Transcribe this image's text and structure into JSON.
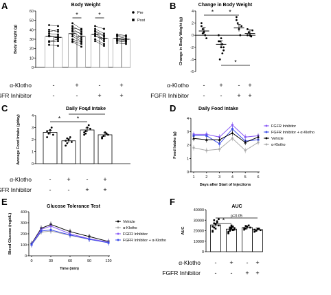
{
  "chart_data": [
    {
      "panel": "A",
      "type": "bar",
      "title": "Body Weight",
      "ylabel": "Body Weight (g)",
      "ylim": [
        0,
        60
      ],
      "yticks": [
        0,
        10,
        20,
        30,
        40,
        50,
        60
      ],
      "legend": [
        {
          "name": "Pre",
          "marker": "circle"
        },
        {
          "name": "Post",
          "marker": "square"
        }
      ],
      "legend_position": "top-right",
      "groups": [
        {
          "pre": 33,
          "post": 32,
          "pre_points": [
            24,
            28,
            36,
            38,
            33,
            40,
            45,
            27,
            34
          ],
          "post_points": [
            23,
            30,
            35,
            40,
            33,
            38,
            44,
            28,
            31
          ]
        },
        {
          "pre": 36,
          "post": 33,
          "pre_points": [
            27,
            30,
            38,
            41,
            44,
            47,
            35,
            33,
            39,
            28,
            42
          ],
          "post_points": [
            22,
            27,
            32,
            35,
            38,
            41,
            30,
            28,
            36,
            25,
            40
          ]
        },
        {
          "pre": 35,
          "post": 31,
          "pre_points": [
            28,
            34,
            38,
            36,
            41,
            33,
            30,
            39,
            44
          ],
          "post_points": [
            23,
            28,
            33,
            30,
            36,
            31,
            25,
            34,
            41
          ]
        },
        {
          "pre": 31,
          "post": 30,
          "pre_points": [
            26,
            29,
            33,
            31,
            35,
            28,
            30,
            34
          ],
          "post_points": [
            25,
            28,
            31,
            30,
            34,
            27,
            29,
            33
          ]
        }
      ],
      "significance": [
        {
          "group": 1,
          "label": "*"
        },
        {
          "group": 2,
          "label": "*"
        }
      ],
      "conditions": {
        "a_klotho": [
          "-",
          "+",
          "-",
          "+"
        ],
        "fgfr_inhibitor": [
          "-",
          "-",
          "+",
          "+"
        ]
      },
      "row_labels": {
        "a_klotho": "α-Klotho",
        "fgfr_inhibitor": "FGFR Inhibitor"
      }
    },
    {
      "panel": "B",
      "type": "bar",
      "title": "Change in Body Weight",
      "ylabel": "Change in Body Weight (g)",
      "ylim": [
        -6,
        4
      ],
      "yticks": [
        -6,
        -4,
        -2,
        0,
        2,
        4
      ],
      "values": [
        0.7,
        -1.5,
        1.2,
        0.3
      ],
      "points": [
        [
          2,
          1,
          0.5,
          0,
          -0.5,
          1.5,
          0.3
        ],
        [
          0,
          -1,
          -2,
          -3,
          -2.5,
          -1,
          -4,
          -0.5,
          -1.5,
          -2
        ],
        [
          3,
          2,
          1,
          0,
          1.5,
          2.5
        ],
        [
          1,
          0.5,
          0,
          -0.2,
          0.8,
          0
        ]
      ],
      "significance": [
        {
          "from": 0,
          "to": 1,
          "label": "*"
        },
        {
          "from": 1,
          "to": 2,
          "label": "*"
        },
        {
          "from": 1,
          "to": 3,
          "label": "*"
        }
      ],
      "conditions": {
        "a_klotho": [
          "-",
          "+",
          "-",
          "+"
        ],
        "fgfr_inhibitor": [
          "-",
          "-",
          "+",
          "+"
        ]
      },
      "row_labels": {
        "a_klotho": "α-Klotho",
        "fgfr_inhibitor": "FGFR Inhibitor"
      }
    },
    {
      "panel": "C",
      "type": "bar",
      "title": "Daily Food Intake",
      "ylabel": "Average Food Intake (g/day)",
      "ylim": [
        0,
        4
      ],
      "yticks": [
        0,
        1,
        2,
        3,
        4
      ],
      "values": [
        2.6,
        1.9,
        2.8,
        2.4
      ],
      "points": [
        [
          2.2,
          2.5,
          2.8,
          3.0,
          2.4,
          2.7
        ],
        [
          1.5,
          1.7,
          2.0,
          2.2,
          1.8,
          1.9,
          2.1
        ],
        [
          2.4,
          2.7,
          3.0,
          3.2,
          2.9,
          2.6,
          2.5
        ],
        [
          2.1,
          2.3,
          2.6,
          2.5,
          2.4,
          2.2
        ]
      ],
      "significance": [
        {
          "from": 0,
          "to": 1,
          "label": "*"
        },
        {
          "from": 1,
          "to": 2,
          "label": "*"
        },
        {
          "from": 1,
          "to": 3,
          "label": "*"
        }
      ],
      "conditions": {
        "a_klotho": [
          "-",
          "+",
          "-",
          "+"
        ],
        "fgfr_inhibitor": [
          "-",
          "-",
          "+",
          "+"
        ]
      },
      "row_labels": {
        "a_klotho": "α-Klotho",
        "fgfr_inhibitor": "FGFR Inhibitor"
      }
    },
    {
      "panel": "D",
      "type": "line",
      "title": "Daily Food Intake",
      "xlabel": "Days after Start of Injections",
      "ylabel": "Food Intake (g)",
      "x": [
        1,
        2,
        3,
        4,
        5,
        6
      ],
      "xlim": [
        1,
        6
      ],
      "ylim": [
        0,
        4
      ],
      "yticks": [
        0,
        1,
        2,
        3,
        4
      ],
      "legend_position": "right",
      "series": [
        {
          "name": "FGFR Inhibitor",
          "color": "#8b5cf6",
          "values": [
            2.8,
            2.8,
            2.6,
            3.5,
            2.6,
            2.7
          ]
        },
        {
          "name": "FGFR Inhibitor + α-Klotho",
          "color": "#3b4ce8",
          "values": [
            2.7,
            2.7,
            2.1,
            3.2,
            2.3,
            2.4
          ]
        },
        {
          "name": "Vehicle",
          "color": "#000000",
          "values": [
            2.5,
            2.4,
            2.4,
            2.9,
            2.2,
            2.6
          ]
        },
        {
          "name": "α-Klotho",
          "color": "#aaaaaa",
          "values": [
            1.8,
            1.6,
            1.7,
            2.5,
            1.6,
            2.2
          ]
        }
      ]
    },
    {
      "panel": "E",
      "type": "line",
      "title": "Glucose Tolerance Test",
      "xlabel": "Time (min)",
      "ylabel": "Blood Glucose (mg/dL)",
      "x": [
        0,
        15,
        30,
        60,
        90,
        120
      ],
      "xticks": [
        0,
        30,
        60,
        90,
        120
      ],
      "xlim": [
        0,
        120
      ],
      "ylim": [
        0,
        400
      ],
      "yticks": [
        0,
        100,
        200,
        300,
        400
      ],
      "legend_position": "right",
      "series": [
        {
          "name": "Vehicle",
          "color": "#000000",
          "values": [
            110,
            250,
            285,
            220,
            175,
            130
          ]
        },
        {
          "name": "α-Klotho",
          "color": "#aaaaaa",
          "values": [
            100,
            215,
            225,
            185,
            150,
            120
          ]
        },
        {
          "name": "FGFR Inhibitor",
          "color": "#8b5cf6",
          "values": [
            105,
            240,
            270,
            200,
            155,
            125
          ]
        },
        {
          "name": "FGFR Inhibitor + α-Klotho",
          "color": "#3b4ce8",
          "values": [
            102,
            225,
            235,
            190,
            150,
            118
          ]
        }
      ]
    },
    {
      "panel": "F",
      "type": "bar",
      "title": "AUC",
      "ylabel": "AUC",
      "ylim": [
        0,
        40000
      ],
      "yticks": [
        0,
        10000,
        20000,
        30000,
        40000
      ],
      "values": [
        25500,
        21500,
        23000,
        21000
      ],
      "points": [
        [
          20000,
          23000,
          26000,
          29000,
          31000,
          24000,
          27000,
          22000,
          28000,
          25000,
          19000,
          30000
        ],
        [
          18000,
          20000,
          22000,
          24000,
          21000,
          19000,
          23000,
          25000,
          20500,
          22500,
          17500,
          21500,
          23500
        ],
        [
          21000,
          22000,
          24000,
          25000,
          23000,
          22500,
          24500
        ],
        [
          19000,
          20000,
          21500,
          22000,
          20500,
          21000
        ]
      ],
      "significance": [
        {
          "from": 0,
          "to": 1,
          "label": "*"
        },
        {
          "from": 0,
          "to": 3,
          "label": "p=0.05"
        }
      ],
      "conditions": {
        "a_klotho": [
          "-",
          "+",
          "-",
          "+"
        ],
        "fgfr_inhibitor": [
          "-",
          "-",
          "+",
          "+"
        ]
      },
      "row_labels": {
        "a_klotho": "α-Klotho",
        "fgfr_inhibitor": "FGFR Inhibitor"
      }
    }
  ]
}
